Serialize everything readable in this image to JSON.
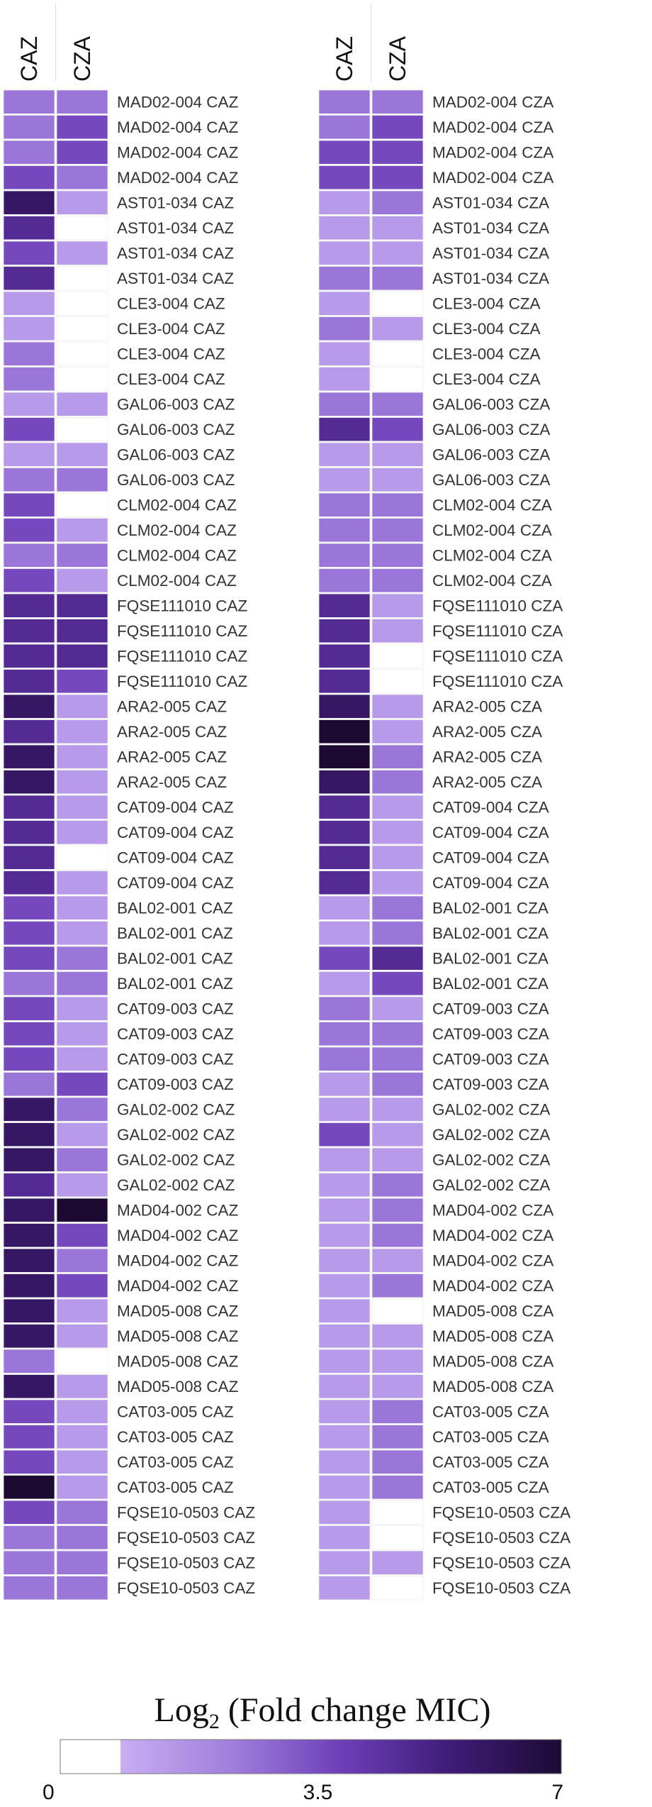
{
  "chart_data": {
    "type": "heatmap",
    "colorbar": {
      "title_main": "Log",
      "title_sub": "2",
      "title_rest": " (Fold change MIC)",
      "min": 0,
      "max": 7,
      "ticks": [
        "0",
        "3.5",
        "7"
      ],
      "colors": [
        "#ffffff",
        "#c9aef2",
        "#a07fdc",
        "#6e3fb8",
        "#3f1c78",
        "#1c0a33"
      ]
    },
    "panels": [
      {
        "columns": [
          "CAZ",
          "CZA"
        ],
        "rows": [
          {
            "label": "MAD02-004 CAZ",
            "values": [
              3,
              3
            ]
          },
          {
            "label": "MAD02-004 CAZ",
            "values": [
              3,
              4
            ]
          },
          {
            "label": "MAD02-004 CAZ",
            "values": [
              3,
              4
            ]
          },
          {
            "label": "MAD02-004 CAZ",
            "values": [
              4,
              3
            ]
          },
          {
            "label": "AST01-034 CAZ",
            "values": [
              6,
              2
            ]
          },
          {
            "label": "AST01-034 CAZ",
            "values": [
              5,
              0
            ]
          },
          {
            "label": "AST01-034 CAZ",
            "values": [
              4,
              2
            ]
          },
          {
            "label": "AST01-034 CAZ",
            "values": [
              5,
              0
            ]
          },
          {
            "label": "CLE3-004 CAZ",
            "values": [
              2,
              0
            ]
          },
          {
            "label": "CLE3-004 CAZ",
            "values": [
              2,
              0
            ]
          },
          {
            "label": "CLE3-004 CAZ",
            "values": [
              3,
              0
            ]
          },
          {
            "label": "CLE3-004 CAZ",
            "values": [
              3,
              0
            ]
          },
          {
            "label": "GAL06-003 CAZ",
            "values": [
              2,
              2
            ]
          },
          {
            "label": "GAL06-003 CAZ",
            "values": [
              4,
              0
            ]
          },
          {
            "label": "GAL06-003 CAZ",
            "values": [
              2,
              2
            ]
          },
          {
            "label": "GAL06-003 CAZ",
            "values": [
              3,
              3
            ]
          },
          {
            "label": "CLM02-004 CAZ",
            "values": [
              4,
              0
            ]
          },
          {
            "label": "CLM02-004 CAZ",
            "values": [
              4,
              2
            ]
          },
          {
            "label": "CLM02-004 CAZ",
            "values": [
              3,
              3
            ]
          },
          {
            "label": "CLM02-004 CAZ",
            "values": [
              4,
              2
            ]
          },
          {
            "label": "FQSE111010 CAZ",
            "values": [
              5,
              5
            ]
          },
          {
            "label": "FQSE111010 CAZ",
            "values": [
              5,
              5
            ]
          },
          {
            "label": "FQSE111010 CAZ",
            "values": [
              5,
              5
            ]
          },
          {
            "label": "FQSE111010 CAZ",
            "values": [
              5,
              4
            ]
          },
          {
            "label": "ARA2-005 CAZ",
            "values": [
              6,
              2
            ]
          },
          {
            "label": "ARA2-005 CAZ",
            "values": [
              5,
              2
            ]
          },
          {
            "label": "ARA2-005 CAZ",
            "values": [
              6,
              2
            ]
          },
          {
            "label": "ARA2-005 CAZ",
            "values": [
              6,
              2
            ]
          },
          {
            "label": "CAT09-004 CAZ",
            "values": [
              5,
              2
            ]
          },
          {
            "label": "CAT09-004 CAZ",
            "values": [
              5,
              2
            ]
          },
          {
            "label": "CAT09-004 CAZ",
            "values": [
              5,
              0
            ]
          },
          {
            "label": "CAT09-004 CAZ",
            "values": [
              5,
              2
            ]
          },
          {
            "label": "BAL02-001 CAZ",
            "values": [
              4,
              2
            ]
          },
          {
            "label": "BAL02-001 CAZ",
            "values": [
              4,
              2
            ]
          },
          {
            "label": "BAL02-001 CAZ",
            "values": [
              4,
              3
            ]
          },
          {
            "label": "BAL02-001 CAZ",
            "values": [
              3,
              3
            ]
          },
          {
            "label": "CAT09-003 CAZ",
            "values": [
              4,
              2
            ]
          },
          {
            "label": "CAT09-003 CAZ",
            "values": [
              4,
              2
            ]
          },
          {
            "label": "CAT09-003 CAZ",
            "values": [
              4,
              2
            ]
          },
          {
            "label": "CAT09-003 CAZ",
            "values": [
              3,
              4
            ]
          },
          {
            "label": "GAL02-002 CAZ",
            "values": [
              6,
              3
            ]
          },
          {
            "label": "GAL02-002 CAZ",
            "values": [
              6,
              2
            ]
          },
          {
            "label": "GAL02-002 CAZ",
            "values": [
              6,
              3
            ]
          },
          {
            "label": "GAL02-002 CAZ",
            "values": [
              5,
              2
            ]
          },
          {
            "label": "MAD04-002 CAZ",
            "values": [
              6,
              7
            ]
          },
          {
            "label": "MAD04-002 CAZ",
            "values": [
              6,
              4
            ]
          },
          {
            "label": "MAD04-002 CAZ",
            "values": [
              6,
              3
            ]
          },
          {
            "label": "MAD04-002 CAZ",
            "values": [
              6,
              4
            ]
          },
          {
            "label": "MAD05-008 CAZ",
            "values": [
              6,
              2
            ]
          },
          {
            "label": "MAD05-008 CAZ",
            "values": [
              6,
              2
            ]
          },
          {
            "label": "MAD05-008 CAZ",
            "values": [
              3,
              0
            ]
          },
          {
            "label": "MAD05-008 CAZ",
            "values": [
              6,
              2
            ]
          },
          {
            "label": "CAT03-005 CAZ",
            "values": [
              4,
              2
            ]
          },
          {
            "label": "CAT03-005 CAZ",
            "values": [
              4,
              2
            ]
          },
          {
            "label": "CAT03-005 CAZ",
            "values": [
              4,
              2
            ]
          },
          {
            "label": "CAT03-005 CAZ",
            "values": [
              7,
              2
            ]
          },
          {
            "label": "FQSE10-0503 CAZ",
            "values": [
              4,
              3
            ]
          },
          {
            "label": "FQSE10-0503 CAZ",
            "values": [
              3,
              3
            ]
          },
          {
            "label": "FQSE10-0503 CAZ",
            "values": [
              3,
              3
            ]
          },
          {
            "label": "FQSE10-0503 CAZ",
            "values": [
              3,
              3
            ]
          }
        ]
      },
      {
        "columns": [
          "CAZ",
          "CZA"
        ],
        "rows": [
          {
            "label": "MAD02-004 CZA",
            "values": [
              3,
              3
            ]
          },
          {
            "label": "MAD02-004 CZA",
            "values": [
              3,
              4
            ]
          },
          {
            "label": "MAD02-004 CZA",
            "values": [
              4,
              4
            ]
          },
          {
            "label": "MAD02-004 CZA",
            "values": [
              4,
              4
            ]
          },
          {
            "label": "AST01-034 CZA",
            "values": [
              2,
              3
            ]
          },
          {
            "label": "AST01-034 CZA",
            "values": [
              2,
              2
            ]
          },
          {
            "label": "AST01-034 CZA",
            "values": [
              2,
              2
            ]
          },
          {
            "label": "AST01-034 CZA",
            "values": [
              3,
              3
            ]
          },
          {
            "label": "CLE3-004 CZA",
            "values": [
              2,
              0
            ]
          },
          {
            "label": "CLE3-004 CZA",
            "values": [
              3,
              2
            ]
          },
          {
            "label": "CLE3-004 CZA",
            "values": [
              2,
              0
            ]
          },
          {
            "label": "CLE3-004 CZA",
            "values": [
              2,
              0
            ]
          },
          {
            "label": "GAL06-003 CZA",
            "values": [
              3,
              3
            ]
          },
          {
            "label": "GAL06-003 CZA",
            "values": [
              5,
              4
            ]
          },
          {
            "label": "GAL06-003 CZA",
            "values": [
              2,
              2
            ]
          },
          {
            "label": "GAL06-003 CZA",
            "values": [
              2,
              2
            ]
          },
          {
            "label": "CLM02-004 CZA",
            "values": [
              3,
              3
            ]
          },
          {
            "label": "CLM02-004 CZA",
            "values": [
              3,
              3
            ]
          },
          {
            "label": "CLM02-004 CZA",
            "values": [
              3,
              3
            ]
          },
          {
            "label": "CLM02-004 CZA",
            "values": [
              3,
              3
            ]
          },
          {
            "label": "FQSE111010 CZA",
            "values": [
              5,
              2
            ]
          },
          {
            "label": "FQSE111010 CZA",
            "values": [
              5,
              2
            ]
          },
          {
            "label": "FQSE111010 CZA",
            "values": [
              5,
              0
            ]
          },
          {
            "label": "FQSE111010 CZA",
            "values": [
              5,
              0
            ]
          },
          {
            "label": "ARA2-005 CZA",
            "values": [
              6,
              2
            ]
          },
          {
            "label": "ARA2-005 CZA",
            "values": [
              7,
              2
            ]
          },
          {
            "label": "ARA2-005 CZA",
            "values": [
              7,
              3
            ]
          },
          {
            "label": "ARA2-005 CZA",
            "values": [
              6,
              3
            ]
          },
          {
            "label": "CAT09-004 CZA",
            "values": [
              5,
              2
            ]
          },
          {
            "label": "CAT09-004 CZA",
            "values": [
              5,
              2
            ]
          },
          {
            "label": "CAT09-004 CZA",
            "values": [
              5,
              2
            ]
          },
          {
            "label": "CAT09-004 CZA",
            "values": [
              5,
              2
            ]
          },
          {
            "label": "BAL02-001 CZA",
            "values": [
              2,
              3
            ]
          },
          {
            "label": "BAL02-001 CZA",
            "values": [
              2,
              3
            ]
          },
          {
            "label": "BAL02-001 CZA",
            "values": [
              4,
              5
            ]
          },
          {
            "label": "BAL02-001 CZA",
            "values": [
              2,
              4
            ]
          },
          {
            "label": "CAT09-003 CZA",
            "values": [
              3,
              2
            ]
          },
          {
            "label": "CAT09-003 CZA",
            "values": [
              3,
              3
            ]
          },
          {
            "label": "CAT09-003 CZA",
            "values": [
              3,
              3
            ]
          },
          {
            "label": "CAT09-003 CZA",
            "values": [
              2,
              3
            ]
          },
          {
            "label": "GAL02-002 CZA",
            "values": [
              2,
              2
            ]
          },
          {
            "label": "GAL02-002 CZA",
            "values": [
              4,
              2
            ]
          },
          {
            "label": "GAL02-002 CZA",
            "values": [
              2,
              2
            ]
          },
          {
            "label": "GAL02-002 CZA",
            "values": [
              2,
              3
            ]
          },
          {
            "label": "MAD04-002 CZA",
            "values": [
              2,
              3
            ]
          },
          {
            "label": "MAD04-002 CZA",
            "values": [
              2,
              3
            ]
          },
          {
            "label": "MAD04-002 CZA",
            "values": [
              2,
              2
            ]
          },
          {
            "label": "MAD04-002 CZA",
            "values": [
              2,
              3
            ]
          },
          {
            "label": "MAD05-008 CZA",
            "values": [
              2,
              0
            ]
          },
          {
            "label": "MAD05-008 CZA",
            "values": [
              2,
              2
            ]
          },
          {
            "label": "MAD05-008 CZA",
            "values": [
              2,
              2
            ]
          },
          {
            "label": "MAD05-008 CZA",
            "values": [
              2,
              2
            ]
          },
          {
            "label": "CAT03-005 CZA",
            "values": [
              2,
              3
            ]
          },
          {
            "label": "CAT03-005 CZA",
            "values": [
              2,
              3
            ]
          },
          {
            "label": "CAT03-005 CZA",
            "values": [
              2,
              3
            ]
          },
          {
            "label": "CAT03-005 CZA",
            "values": [
              2,
              3
            ]
          },
          {
            "label": "FQSE10-0503 CZA",
            "values": [
              2,
              0
            ]
          },
          {
            "label": "FQSE10-0503 CZA",
            "values": [
              2,
              0
            ]
          },
          {
            "label": "FQSE10-0503 CZA",
            "values": [
              2,
              2
            ]
          },
          {
            "label": "FQSE10-0503 CZA",
            "values": [
              2,
              0
            ]
          }
        ]
      }
    ]
  }
}
